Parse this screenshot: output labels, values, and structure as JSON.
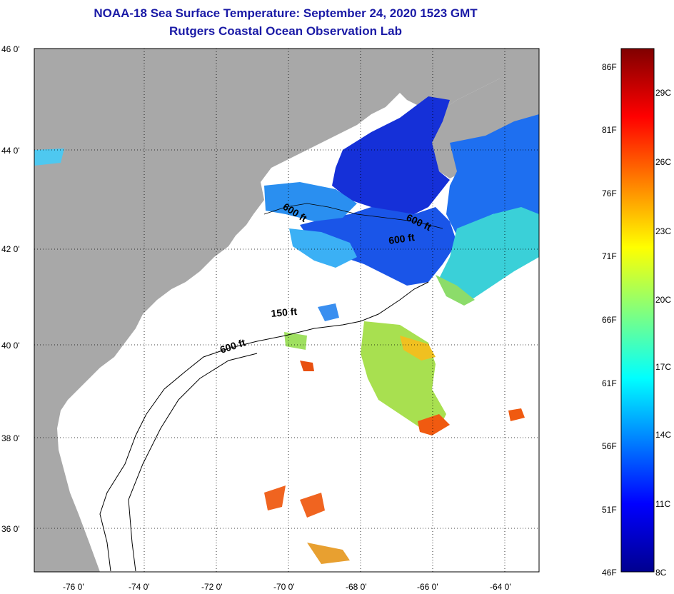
{
  "header": {
    "title": "NOAA-18 Sea Surface Temperature:  September 24, 2020 1523 GMT",
    "subtitle": "Rutgers Coastal Ocean Observation Lab"
  },
  "map": {
    "lat_ticks": [
      "46 0'",
      "44 0'",
      "42 0'",
      "40 0'",
      "38 0'",
      "36 0'"
    ],
    "lon_ticks": [
      "-76 0'",
      "-74 0'",
      "-72 0'",
      "-70 0'",
      "-68 0'",
      "-66 0'",
      "-64 0'"
    ],
    "contours": [
      {
        "id": "c1",
        "label": "600 ft"
      },
      {
        "id": "c2",
        "label": "600 ft"
      },
      {
        "id": "c3",
        "label": "600 ft"
      },
      {
        "id": "c4",
        "label": "150 ft"
      },
      {
        "id": "c5",
        "label": "600 ft"
      }
    ]
  },
  "colorbar": {
    "fahrenheit": [
      "86F",
      "81F",
      "76F",
      "71F",
      "66F",
      "61F",
      "56F",
      "51F",
      "46F"
    ],
    "celsius": [
      "29C",
      "26C",
      "23C",
      "20C",
      "17C",
      "14C",
      "11C",
      "8C"
    ]
  },
  "colors": {
    "land": "#a8a8a8",
    "title": "#1a1aa6"
  }
}
